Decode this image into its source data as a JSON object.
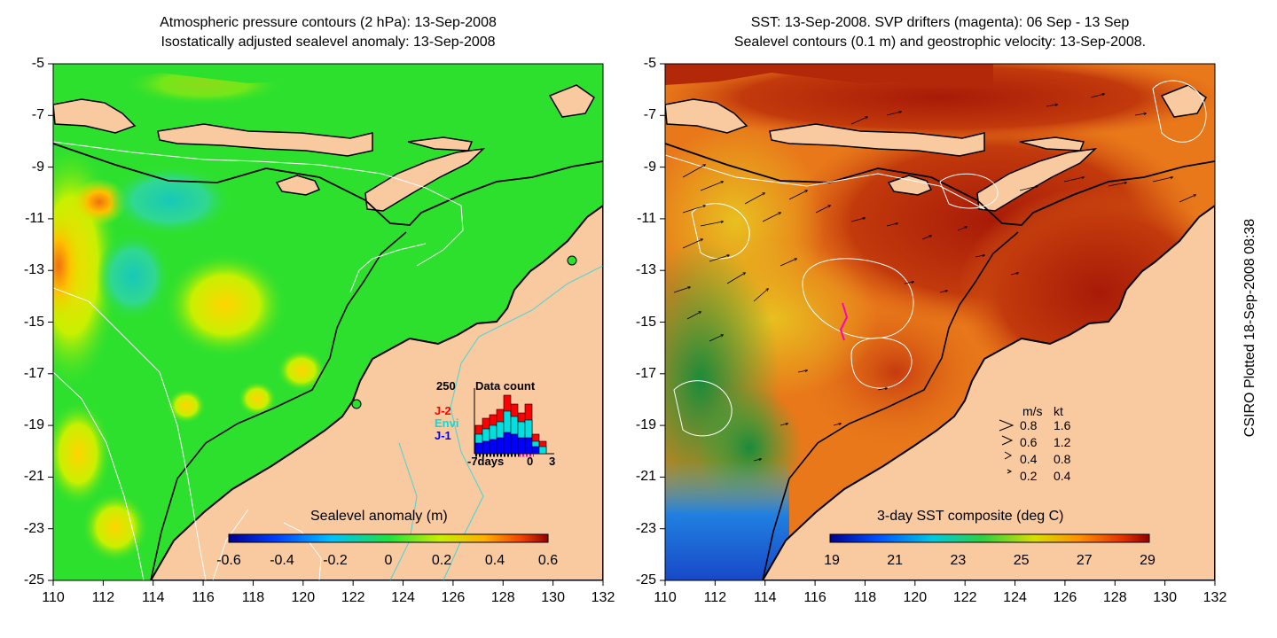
{
  "left_panel": {
    "title_line1": "Atmospheric pressure contours (2 hPa): 13-Sep-2008",
    "title_line2": "Isostatically adjusted sealevel anomaly: 13-Sep-2008",
    "y_ticks": [
      "-5",
      "-7",
      "-9",
      "-11",
      "-13",
      "-15",
      "-17",
      "-19",
      "-21",
      "-23",
      "-25"
    ],
    "x_ticks": [
      "110",
      "112",
      "114",
      "116",
      "118",
      "120",
      "122",
      "124",
      "126",
      "128",
      "130",
      "132"
    ],
    "colorbar": {
      "label": "Sealevel anomaly (m)",
      "ticks": [
        "-0.6",
        "-0.4",
        "-0.2",
        "0",
        "0.2",
        "0.4",
        "0.6"
      ]
    },
    "data_count": {
      "max_label": "250",
      "title": "Data count",
      "legend": [
        {
          "name": "J-2",
          "color": "#ff0000"
        },
        {
          "name": "Envi",
          "color": "#00e0e0"
        },
        {
          "name": "J-1",
          "color": "#0000ff"
        }
      ],
      "x_labels": [
        "-7days",
        "0",
        "3"
      ]
    }
  },
  "right_panel": {
    "title_line1": "SST: 13-Sep-2008. SVP drifters (magenta): 06 Sep - 13 Sep",
    "title_line2": "Sealevel contours (0.1 m) and geostrophic velocity: 13-Sep-2008.",
    "y_ticks": [
      "-5",
      "-7",
      "-9",
      "-11",
      "-13",
      "-15",
      "-17",
      "-19",
      "-21",
      "-23",
      "-25"
    ],
    "x_ticks": [
      "110",
      "112",
      "114",
      "116",
      "118",
      "120",
      "122",
      "124",
      "126",
      "128",
      "130",
      "132"
    ],
    "colorbar": {
      "label": "3-day SST composite (deg C)",
      "ticks": [
        "19",
        "21",
        "23",
        "25",
        "27",
        "29"
      ]
    },
    "velocity_legend": {
      "headers": [
        "m/s",
        "kt"
      ],
      "rows": [
        {
          "ms": "0.8",
          "kt": "1.6"
        },
        {
          "ms": "0.6",
          "kt": "1.2"
        },
        {
          "ms": "0.4",
          "kt": "0.8"
        },
        {
          "ms": "0.2",
          "kt": "0.4"
        }
      ]
    }
  },
  "credit": "CSIRO Plotted 18-Sep-2008 08:38",
  "colors": {
    "land": "#f9c9a0",
    "ocean_green": "#2ee02e",
    "sst_red": "#b4280a",
    "sst_orange": "#e26a16",
    "sst_cold": "#1c5fd8"
  }
}
